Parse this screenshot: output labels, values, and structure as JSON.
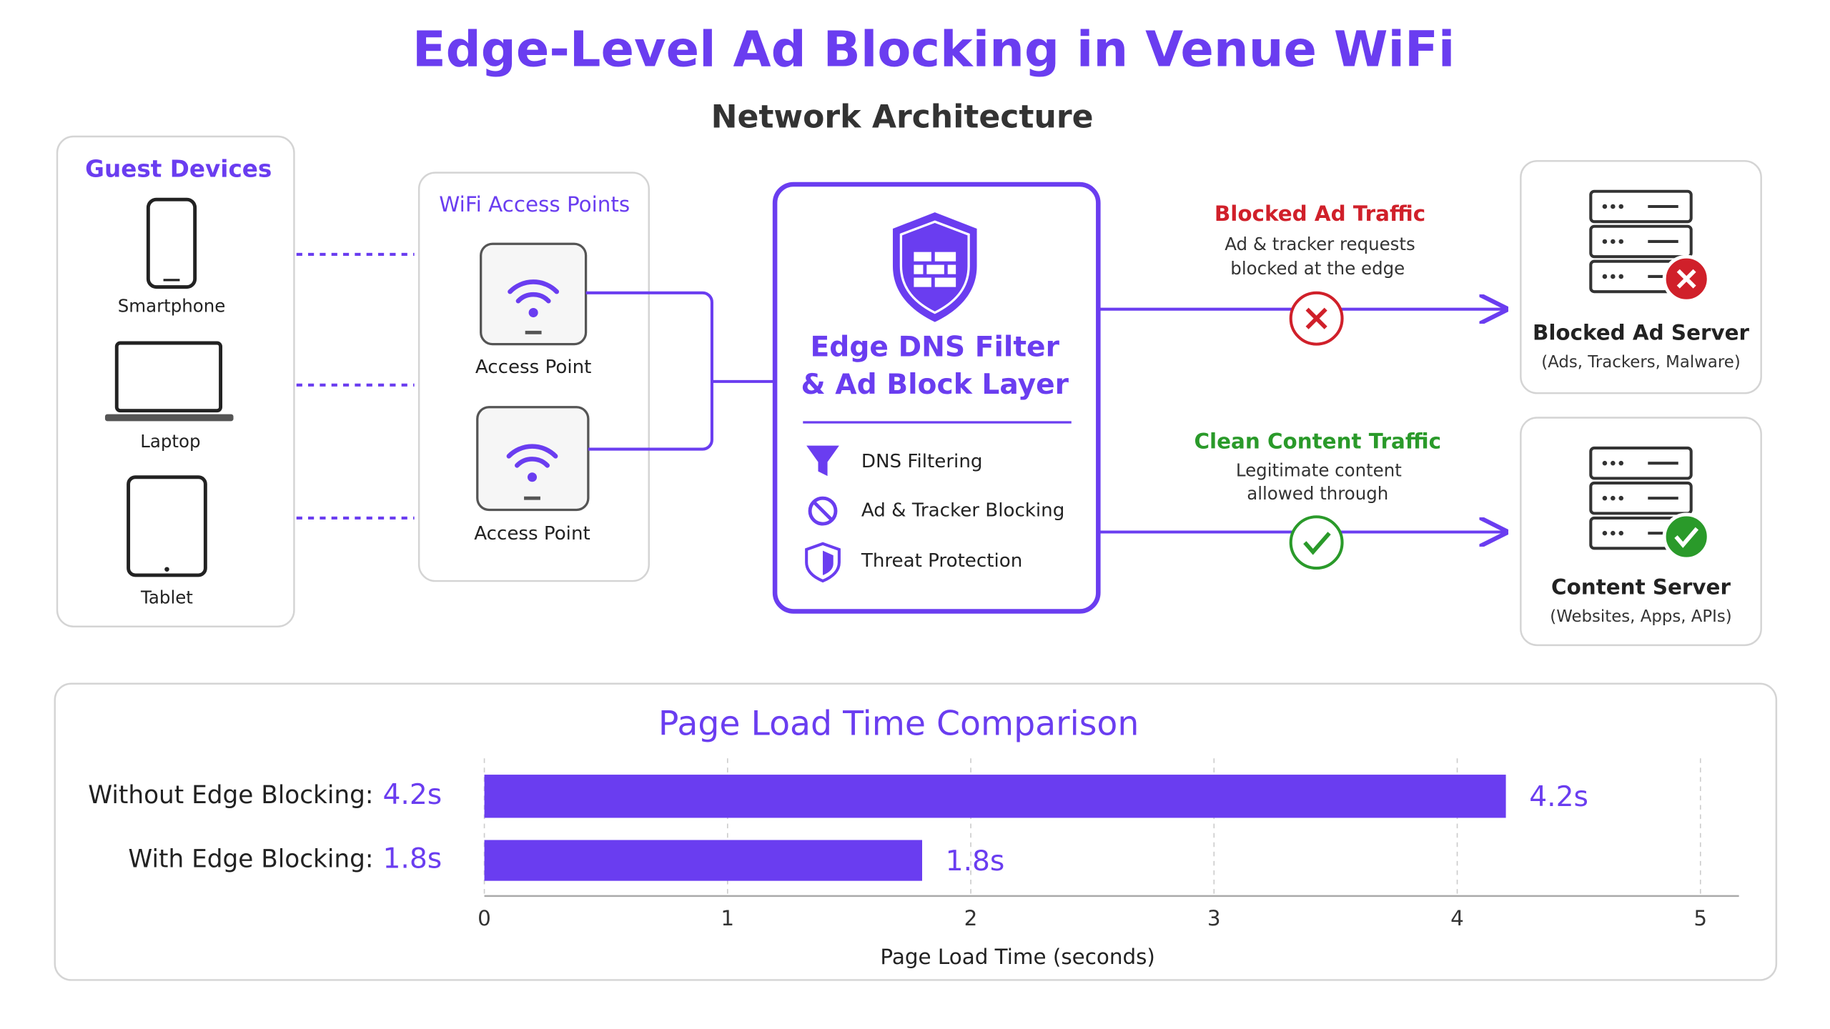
{
  "header": {
    "title": "Edge-Level Ad Blocking in Venue WiFi",
    "subtitle": "Network Architecture"
  },
  "devices": {
    "title": "Guest Devices",
    "items": [
      "Smartphone",
      "Laptop",
      "Tablet"
    ]
  },
  "access_points": {
    "title": "WiFi Access Points",
    "items": [
      "Access Point",
      "Access Point"
    ]
  },
  "filter": {
    "title_lines": [
      "Edge DNS Filter",
      "& Ad Block Layer"
    ],
    "features": [
      "DNS Filtering",
      "Ad & Tracker Blocking",
      "Threat Protection"
    ]
  },
  "flows": [
    {
      "title": "Blocked Ad Traffic",
      "description": [
        "Ad & tracker requests",
        "blocked at the edge"
      ]
    },
    {
      "title": "Clean Content Traffic",
      "description": [
        "Legitimate content",
        "allowed through"
      ]
    }
  ],
  "servers": [
    {
      "name": "Blocked Ad Server",
      "detail": "(Ads, Trackers, Malware)"
    },
    {
      "name": "Content Server",
      "detail": "(Websites, Apps, APIs)"
    }
  ],
  "chart_data": {
    "type": "bar",
    "orientation": "horizontal",
    "title": "Page Load Time Comparison",
    "categories": [
      "Without Edge Blocking:",
      "With Edge Blocking:"
    ],
    "values": [
      4.2,
      1.8
    ],
    "value_labels": [
      "4.2s",
      "1.8s"
    ],
    "color": "#6a3df0",
    "xlim": [
      0,
      5
    ],
    "xticks": [
      0,
      1,
      2,
      3,
      4,
      5
    ],
    "xlabel": "Page Load Time (seconds)",
    "grid": true
  }
}
